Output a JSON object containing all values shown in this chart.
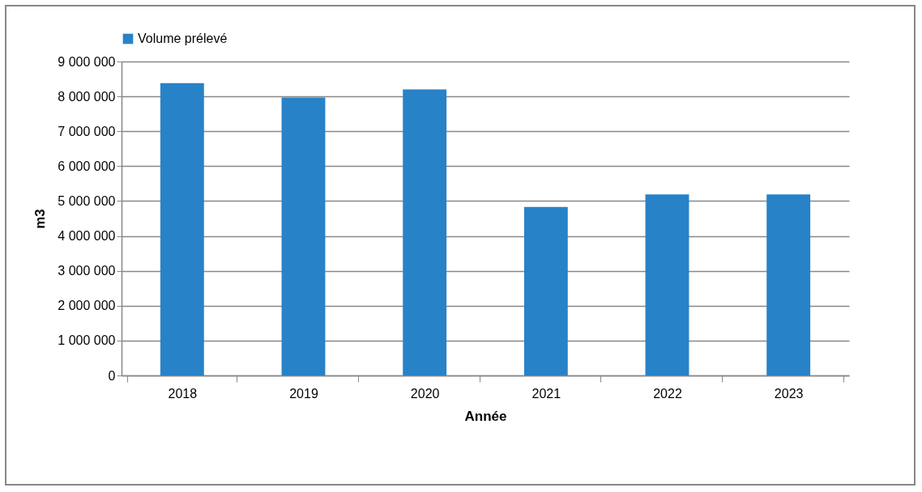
{
  "chart_data": {
    "type": "bar",
    "xlabel": "Année",
    "ylabel": "m3",
    "categories": [
      "2018",
      "2019",
      "2020",
      "2021",
      "2022",
      "2023"
    ],
    "series": [
      {
        "name": "Volume prélevé",
        "color": "#2882c8",
        "values": [
          8380000,
          7970000,
          8200000,
          4830000,
          5190000,
          5190000
        ]
      }
    ],
    "ylim": [
      0,
      9000000
    ],
    "yticks": [
      {
        "value": 0,
        "label": "0"
      },
      {
        "value": 1000000,
        "label": "1 000 000"
      },
      {
        "value": 2000000,
        "label": "2 000 000"
      },
      {
        "value": 3000000,
        "label": "3 000 000"
      },
      {
        "value": 4000000,
        "label": "4 000 000"
      },
      {
        "value": 5000000,
        "label": "5 000 000"
      },
      {
        "value": 6000000,
        "label": "6 000 000"
      },
      {
        "value": 7000000,
        "label": "7 000 000"
      },
      {
        "value": 8000000,
        "label": "8 000 000"
      },
      {
        "value": 9000000,
        "label": "9 000 000"
      }
    ],
    "grid": "y",
    "legend": "top"
  }
}
